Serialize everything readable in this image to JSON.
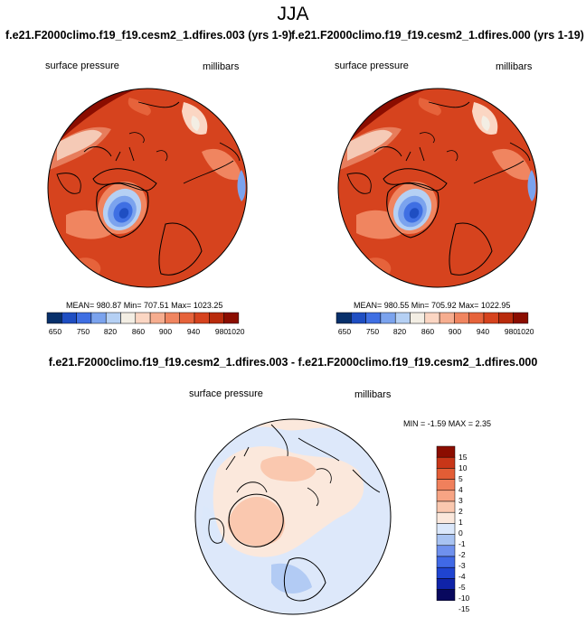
{
  "page_title": "JJA",
  "colors": {
    "background": "#ffffff",
    "abs_scale": [
      "#08306b",
      "#1f4ec2",
      "#3f6fe3",
      "#7ba3ee",
      "#b5d0f4",
      "#f3eee4",
      "#fbd6c3",
      "#f6ad8f",
      "#f08560",
      "#e6633b",
      "#d6431e",
      "#b92b0c",
      "#8b0d00"
    ],
    "diff_scale": [
      "#08085e",
      "#0f23a8",
      "#1f44d1",
      "#4069e6",
      "#6f91ee",
      "#a8c3f2",
      "#dbe8fb",
      "#fbe8dc",
      "#fac8af",
      "#f7a484",
      "#f0805c",
      "#e35d35",
      "#c83618",
      "#8b0d00"
    ]
  },
  "panels": [
    {
      "title": "f.e21.F2000climo.f19_f19.cesm2_1.dfires.003 (yrs 1-9)",
      "left_label": "surface pressure",
      "right_label": "millibars",
      "stats": "MEAN= 980.87  Min= 707.51  Max= 1023.25"
    },
    {
      "title": "f.e21.F2000climo.f19_f19.cesm2_1.dfires.000 (yrs 1-19)",
      "left_label": "surface pressure",
      "right_label": "millibars",
      "stats": "MEAN= 980.55  Min= 705.92  Max= 1022.95"
    }
  ],
  "difference": {
    "title": "f.e21.F2000climo.f19_f19.cesm2_1.dfires.003 - f.e21.F2000climo.f19_f19.cesm2_1.dfires.000",
    "left_label": "surface pressure",
    "right_label": "millibars",
    "stats": "MIN =  -1.59 MAX =   2.35"
  },
  "chart_data": [
    {
      "type": "heatmap",
      "projection": "north polar stereographic",
      "title": "f.e21.F2000climo.f19_f19.cesm2_1.dfires.003 (yrs 1-9)",
      "variable": "surface pressure",
      "units": "millibars",
      "mean": 980.87,
      "min": 707.51,
      "max": 1023.25,
      "colorbar_ticks": [
        "650",
        "750",
        "820",
        "860",
        "900",
        "940",
        "980",
        "1020"
      ]
    },
    {
      "type": "heatmap",
      "projection": "north polar stereographic",
      "title": "f.e21.F2000climo.f19_f19.cesm2_1.dfires.000 (yrs 1-19)",
      "variable": "surface pressure",
      "units": "millibars",
      "mean": 980.55,
      "min": 705.92,
      "max": 1022.95,
      "colorbar_ticks": [
        "650",
        "750",
        "820",
        "860",
        "900",
        "940",
        "980",
        "1020"
      ]
    },
    {
      "type": "heatmap",
      "projection": "north polar stereographic",
      "title": "f.e21.F2000climo.f19_f19.cesm2_1.dfires.003 - f.e21.F2000climo.f19_f19.cesm2_1.dfires.000",
      "variable": "surface pressure",
      "units": "millibars",
      "min": -1.59,
      "max": 2.35,
      "colorbar_ticks": [
        "15",
        "10",
        "5",
        "4",
        "3",
        "2",
        "1",
        "0",
        "-1",
        "-2",
        "-3",
        "-4",
        "-5",
        "-10",
        "-15"
      ]
    }
  ]
}
